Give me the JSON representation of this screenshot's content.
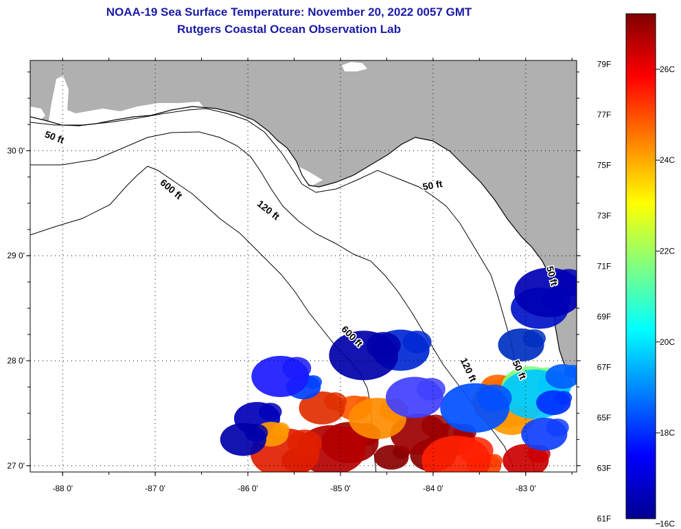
{
  "header": {
    "title": "NOAA-19 Sea Surface Temperature:  November 20, 2022 0057 GMT",
    "subtitle": "Rutgers Coastal Ocean Observation Lab"
  },
  "map": {
    "x_axis": {
      "min": -88.35,
      "max": -82.45,
      "ticks": [
        {
          "value": -88,
          "label": "-88 0'"
        },
        {
          "value": -87,
          "label": "-87 0'"
        },
        {
          "value": -86,
          "label": "-86 0'"
        },
        {
          "value": -85,
          "label": "-85 0'"
        },
        {
          "value": -84,
          "label": "-84 0'"
        },
        {
          "value": -83,
          "label": "-83 0'"
        }
      ]
    },
    "y_axis": {
      "min": 26.94,
      "max": 30.86,
      "ticks": [
        {
          "value": 30,
          "label": "30 0'"
        },
        {
          "value": 29,
          "label": "29 0'"
        },
        {
          "value": 28,
          "label": "28 0'"
        },
        {
          "value": 27,
          "label": "27 0'"
        }
      ]
    },
    "contour_labels": [
      {
        "text": "50 ft",
        "lon": -88.1,
        "lat": 30.1,
        "rotate": 20
      },
      {
        "text": "600 ft",
        "lon": -86.85,
        "lat": 29.61,
        "rotate": 40
      },
      {
        "text": "120 ft",
        "lon": -85.8,
        "lat": 29.41,
        "rotate": 38
      },
      {
        "text": "50 ft",
        "lon": -84.0,
        "lat": 29.64,
        "rotate": -10
      },
      {
        "text": "600 ft",
        "lon": -84.9,
        "lat": 28.21,
        "rotate": 45
      },
      {
        "text": "120 ft",
        "lon": -83.65,
        "lat": 27.9,
        "rotate": 65
      },
      {
        "text": "50 ft",
        "lon": -83.1,
        "lat": 27.9,
        "rotate": 65
      },
      {
        "text": "50 ft",
        "lon": -82.75,
        "lat": 28.8,
        "rotate": 75
      }
    ],
    "colors": {
      "land": "#b0b0b0",
      "water": "#ffffff",
      "contour": "#000000",
      "grid": "#000000"
    }
  },
  "sst_patches": [
    {
      "lon": -84.45,
      "lat": 27.08,
      "c": "#8b0000"
    },
    {
      "lon": -84.0,
      "lat": 27.1,
      "c": "#8b0000"
    },
    {
      "lon": -84.9,
      "lat": 27.22,
      "c": "#a00000"
    },
    {
      "lon": -85.1,
      "lat": 27.15,
      "c": "#b50000"
    },
    {
      "lon": -85.45,
      "lat": 27.05,
      "c": "#c40000"
    },
    {
      "lon": -83.8,
      "lat": 27.25,
      "c": "#a00000"
    },
    {
      "lon": -84.15,
      "lat": 27.3,
      "c": "#9c0000"
    },
    {
      "lon": -85.6,
      "lat": 27.12,
      "c": "#e02000"
    },
    {
      "lon": -84.85,
      "lat": 27.55,
      "c": "#ff5a00"
    },
    {
      "lon": -85.2,
      "lat": 27.55,
      "c": "#e03000"
    },
    {
      "lon": -84.6,
      "lat": 27.45,
      "c": "#ff8c00"
    },
    {
      "lon": -83.2,
      "lat": 27.6,
      "c": "#ff7a00"
    },
    {
      "lon": -83.3,
      "lat": 27.75,
      "c": "#ff6a00"
    },
    {
      "lon": -83.15,
      "lat": 27.45,
      "c": "#ff9a00"
    },
    {
      "lon": -82.95,
      "lat": 27.75,
      "c": "#7dff7d"
    },
    {
      "lon": -82.9,
      "lat": 27.68,
      "c": "#00c8ff"
    },
    {
      "lon": -83.45,
      "lat": 27.0,
      "c": "#ff4000"
    },
    {
      "lon": -83.0,
      "lat": 27.05,
      "c": "#cc0000"
    },
    {
      "lon": -82.85,
      "lat": 28.5,
      "c": "#0014c8"
    },
    {
      "lon": -82.75,
      "lat": 28.65,
      "c": "#0000b4"
    },
    {
      "lon": -82.7,
      "lat": 27.6,
      "c": "#0030ff"
    },
    {
      "lon": -82.8,
      "lat": 27.3,
      "c": "#1040ff"
    },
    {
      "lon": -84.35,
      "lat": 28.1,
      "c": "#0028d2"
    },
    {
      "lon": -84.75,
      "lat": 28.05,
      "c": "#0000aa"
    },
    {
      "lon": -85.4,
      "lat": 27.75,
      "c": "#0040ff"
    },
    {
      "lon": -85.9,
      "lat": 27.45,
      "c": "#0000b8"
    },
    {
      "lon": -85.65,
      "lat": 27.85,
      "c": "#1a1aff"
    },
    {
      "lon": -83.55,
      "lat": 27.55,
      "c": "#0050ff"
    },
    {
      "lon": -85.75,
      "lat": 27.3,
      "c": "#ff9900"
    },
    {
      "lon": -86.05,
      "lat": 27.25,
      "c": "#0000aa"
    },
    {
      "lon": -84.2,
      "lat": 27.65,
      "c": "#4040ff"
    },
    {
      "lon": -83.75,
      "lat": 27.05,
      "c": "#ff2000"
    },
    {
      "lon": -82.6,
      "lat": 27.85,
      "c": "#0060ff"
    },
    {
      "lon": -83.05,
      "lat": 28.15,
      "c": "#0030c0"
    }
  ],
  "colorbar": {
    "f_labels": [
      "79F",
      "77F",
      "75F",
      "73F",
      "71F",
      "69F",
      "67F",
      "65F",
      "63F",
      "61F"
    ],
    "c_labels": [
      "26C",
      "24C",
      "22C",
      "20C",
      "18C",
      "16C"
    ],
    "stops": [
      "#00008f",
      "#0000ff",
      "#0080ff",
      "#00ffff",
      "#80ff80",
      "#ffff00",
      "#ff8000",
      "#ff0000",
      "#800000"
    ]
  }
}
